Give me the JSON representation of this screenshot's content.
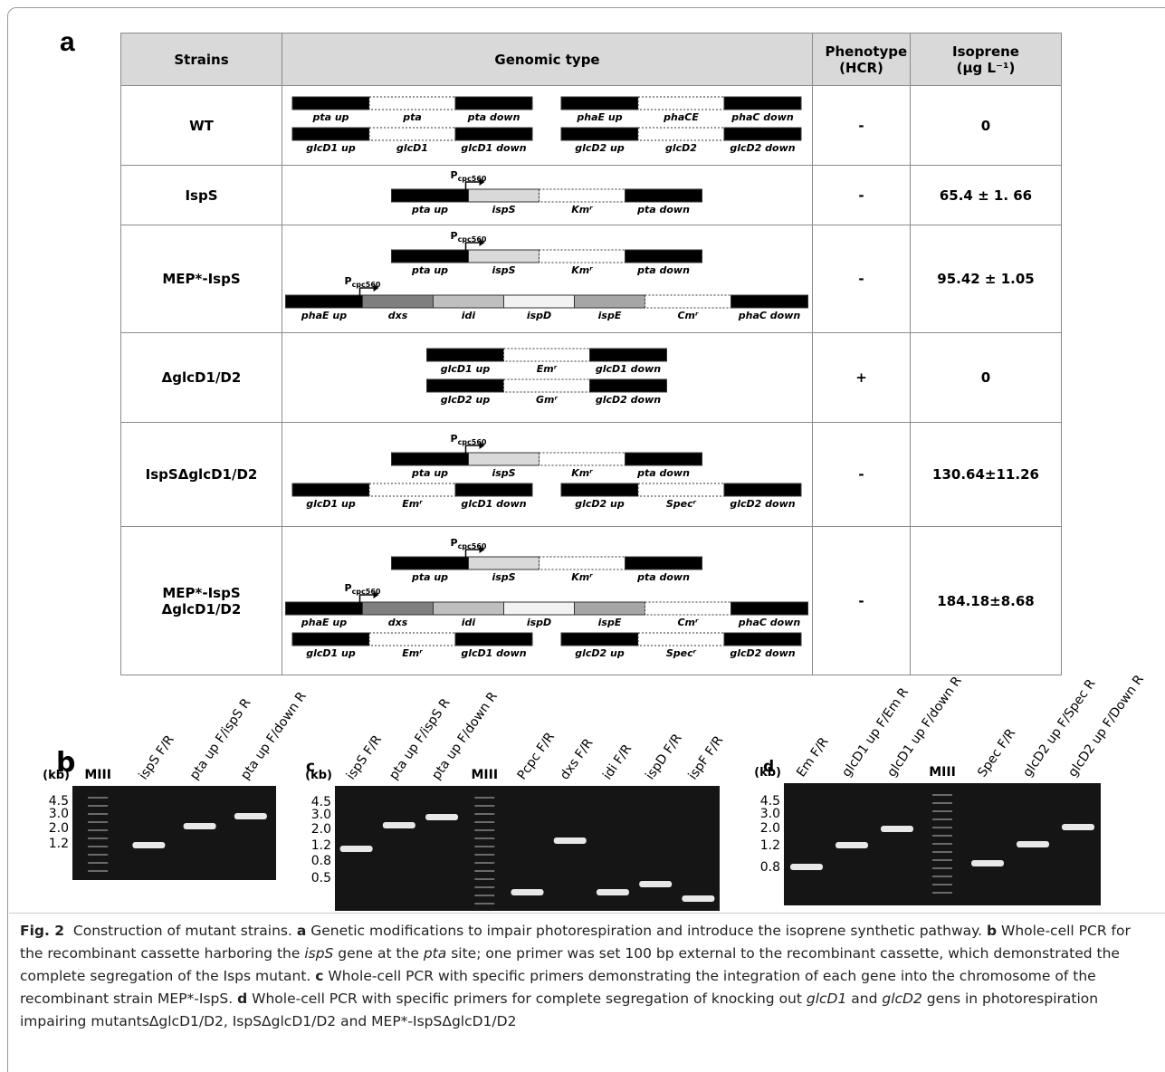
{
  "panel_a": {
    "label": "a",
    "headers": [
      "Strains",
      "Genomic type",
      "Phenotype (HCR)",
      "Isoprene (μg L⁻¹)"
    ],
    "rows": [
      {
        "strain": "WT",
        "lines": [
          [
            {
              "segments": [
                {
                  "label": "pta up",
                  "fill": "#000000"
                },
                {
                  "label": "pta",
                  "fill": "#ffffff",
                  "dashed": true
                },
                {
                  "label": "pta down",
                  "fill": "#000000"
                }
              ]
            },
            {
              "segments": [
                {
                  "label": "phaE up",
                  "fill": "#000000"
                },
                {
                  "label": "phaCE",
                  "fill": "#ffffff",
                  "dashed": true
                },
                {
                  "label": "phaC down",
                  "fill": "#000000"
                }
              ]
            }
          ],
          [
            {
              "segments": [
                {
                  "label": "glcD1 up",
                  "fill": "#000000"
                },
                {
                  "label": "glcD1",
                  "fill": "#ffffff",
                  "dashed": true
                },
                {
                  "label": "glcD1 down",
                  "fill": "#000000"
                }
              ]
            },
            {
              "segments": [
                {
                  "label": "glcD2 up",
                  "fill": "#000000"
                },
                {
                  "label": "glcD2",
                  "fill": "#ffffff",
                  "dashed": true
                },
                {
                  "label": "glcD2 down",
                  "fill": "#000000"
                }
              ]
            }
          ]
        ],
        "phenotype": "-",
        "isoprene": "0"
      },
      {
        "strain": "IspS",
        "lines": [
          [
            {
              "segments": [
                {
                  "label": "pta up",
                  "fill": "#000000"
                },
                {
                  "label": "ispS",
                  "fill": "#d9d9d9",
                  "promoter": {
                    "main": "P",
                    "sub": "cpc560"
                  }
                },
                {
                  "label": "Kmʳ",
                  "fill": "#ffffff",
                  "dashed": true
                },
                {
                  "label": "pta down",
                  "fill": "#000000"
                }
              ]
            }
          ]
        ],
        "phenotype": "-",
        "isoprene": "65.4 ± 1. 66"
      },
      {
        "strain": "MEP*-IspS",
        "lines": [
          [
            {
              "segments": [
                {
                  "label": "pta up",
                  "fill": "#000000"
                },
                {
                  "label": "ispS",
                  "fill": "#d9d9d9",
                  "promoter": {
                    "main": "P",
                    "sub": "cpc560"
                  }
                },
                {
                  "label": "Kmʳ",
                  "fill": "#ffffff",
                  "dashed": true
                },
                {
                  "label": "pta down",
                  "fill": "#000000"
                }
              ]
            }
          ],
          [
            {
              "segments": [
                {
                  "label": "phaE up",
                  "fill": "#000000"
                },
                {
                  "label": "dxs",
                  "fill": "#7f7f7f",
                  "promoter": {
                    "main": "P",
                    "sub": "cpc560"
                  }
                },
                {
                  "label": "idi",
                  "fill": "#bfbfbf"
                },
                {
                  "label": "ispD",
                  "fill": "#f2f2f2"
                },
                {
                  "label": "ispE",
                  "fill": "#a6a6a6"
                },
                {
                  "label": "Cmʳ",
                  "fill": "#ffffff",
                  "dashed": true
                },
                {
                  "label": "phaC down",
                  "fill": "#000000"
                }
              ]
            }
          ]
        ],
        "phenotype": "-",
        "isoprene": "95.42 ± 1.05"
      },
      {
        "strain": "ΔglcD1/D2",
        "lines": [
          [
            {
              "segments": [
                {
                  "label": "glcD1 up",
                  "fill": "#000000"
                },
                {
                  "label": "Emʳ",
                  "fill": "#ffffff",
                  "dashed": true
                },
                {
                  "label": "glcD1 down",
                  "fill": "#000000"
                }
              ]
            }
          ],
          [
            {
              "segments": [
                {
                  "label": "glcD2 up",
                  "fill": "#000000"
                },
                {
                  "label": "Gmʳ",
                  "fill": "#ffffff",
                  "dashed": true
                },
                {
                  "label": "glcD2 down",
                  "fill": "#000000"
                }
              ]
            }
          ]
        ],
        "phenotype": "+",
        "isoprene": "0"
      },
      {
        "strain": "IspSΔglcD1/D2",
        "lines": [
          [
            {
              "segments": [
                {
                  "label": "pta up",
                  "fill": "#000000"
                },
                {
                  "label": "ispS",
                  "fill": "#d9d9d9",
                  "promoter": {
                    "main": "P",
                    "sub": "cpc560"
                  }
                },
                {
                  "label": "Kmʳ",
                  "fill": "#ffffff",
                  "dashed": true
                },
                {
                  "label": "pta down",
                  "fill": "#000000"
                }
              ]
            }
          ],
          [
            {
              "segments": [
                {
                  "label": "glcD1 up",
                  "fill": "#000000"
                },
                {
                  "label": "Emʳ",
                  "fill": "#ffffff",
                  "dashed": true
                },
                {
                  "label": "glcD1 down",
                  "fill": "#000000"
                }
              ]
            },
            {
              "segments": [
                {
                  "label": "glcD2 up",
                  "fill": "#000000"
                },
                {
                  "label": "Specʳ",
                  "fill": "#ffffff",
                  "dashed": true
                },
                {
                  "label": "glcD2 down",
                  "fill": "#000000"
                }
              ]
            }
          ]
        ],
        "phenotype": "-",
        "isoprene": "130.64±11.26"
      },
      {
        "strain": "MEP*-IspS ΔglcD1/D2",
        "lines": [
          [
            {
              "segments": [
                {
                  "label": "pta up",
                  "fill": "#000000"
                },
                {
                  "label": "ispS",
                  "fill": "#d9d9d9",
                  "promoter": {
                    "main": "P",
                    "sub": "cpc560"
                  }
                },
                {
                  "label": "Kmʳ",
                  "fill": "#ffffff",
                  "dashed": true
                },
                {
                  "label": "pta down",
                  "fill": "#000000"
                }
              ]
            }
          ],
          [
            {
              "segments": [
                {
                  "label": "phaE up",
                  "fill": "#000000"
                },
                {
                  "label": "dxs",
                  "fill": "#7f7f7f",
                  "promoter": {
                    "main": "P",
                    "sub": "cpc560"
                  }
                },
                {
                  "label": "idi",
                  "fill": "#bfbfbf"
                },
                {
                  "label": "ispD",
                  "fill": "#f2f2f2"
                },
                {
                  "label": "ispE",
                  "fill": "#a6a6a6"
                },
                {
                  "label": "Cmʳ",
                  "fill": "#ffffff",
                  "dashed": true
                },
                {
                  "label": "phaC down",
                  "fill": "#000000"
                }
              ]
            }
          ],
          [
            {
              "segments": [
                {
                  "label": "glcD1 up",
                  "fill": "#000000"
                },
                {
                  "label": "Emʳ",
                  "fill": "#ffffff",
                  "dashed": true
                },
                {
                  "label": "glcD1 down",
                  "fill": "#000000"
                }
              ]
            },
            {
              "segments": [
                {
                  "label": "glcD2 up",
                  "fill": "#000000"
                },
                {
                  "label": "Specʳ",
                  "fill": "#ffffff",
                  "dashed": true
                },
                {
                  "label": "glcD2 down",
                  "fill": "#000000"
                }
              ]
            }
          ]
        ],
        "phenotype": "-",
        "isoprene": "184.18±8.68"
      }
    ]
  },
  "gels": [
    {
      "label": "b",
      "unit": "(kb)",
      "markers": [
        "4.5",
        "3.0",
        "2.0",
        "1.2"
      ],
      "lanes": [
        {
          "label": "MIII",
          "marker": true
        },
        {
          "label": "ispS F/R"
        },
        {
          "label": "pta up F/ispS R"
        },
        {
          "label": "pta up F/down R"
        }
      ]
    },
    {
      "label": "c",
      "unit": "(kb)",
      "markers": [
        "4.5",
        "3.0",
        "2.0",
        "1.2",
        "0.8",
        "0.5"
      ],
      "lanes": [
        {
          "label": "ispS F/R"
        },
        {
          "label": "pta up F/ispS R"
        },
        {
          "label": "pta up F/down R"
        },
        {
          "label": "MIII",
          "marker": true
        },
        {
          "label": "Pcpc F/R"
        },
        {
          "label": "dxs F/R"
        },
        {
          "label": "idi F/R"
        },
        {
          "label": "ispD F/R"
        },
        {
          "label": "ispF F/R"
        }
      ]
    },
    {
      "label": "d",
      "unit": "(kb)",
      "markers": [
        "4.5",
        "3.0",
        "2.0",
        "1.2",
        "0.8"
      ],
      "lanes": [
        {
          "label": "Em F/R"
        },
        {
          "label": "glcD1 up F/Em R"
        },
        {
          "label": "glcD1 up F/down R"
        },
        {
          "label": "MIII",
          "marker": true
        },
        {
          "label": "Spec F/R"
        },
        {
          "label": "glcD2 up F/Spec R"
        },
        {
          "label": "glcD2 up F/Down R"
        }
      ]
    }
  ],
  "caption": {
    "runs": [
      {
        "text": "Fig. 2",
        "bold": true
      },
      {
        "text": "  Construction of mutant strains. "
      },
      {
        "text": "a",
        "bold": true
      },
      {
        "text": " Genetic modifications to impair photorespiration and introduce the isoprene synthetic pathway. "
      },
      {
        "text": "b",
        "bold": true
      },
      {
        "text": " Whole-cell PCR for the recombinant cassette harboring the "
      },
      {
        "text": "ispS",
        "italic": true
      },
      {
        "text": " gene at the "
      },
      {
        "text": "pta",
        "italic": true
      },
      {
        "text": " site; one primer was set 100 bp external to the recombinant cassette, which demonstrated the complete segregation of the Isps mutant. "
      },
      {
        "text": "c",
        "bold": true
      },
      {
        "text": " Whole-cell PCR with specific primers demonstrating the integration of each gene into the chromosome of the recombinant strain MEP*-IspS. "
      },
      {
        "text": "d",
        "bold": true
      },
      {
        "text": " Whole-cell PCR with specific primers for complete segregation of knocking out "
      },
      {
        "text": "glcD1",
        "italic": true
      },
      {
        "text": " and "
      },
      {
        "text": "glcD2",
        "italic": true
      },
      {
        "text": " gens in photorespiration impairing mutantsΔglcD1/D2, IspSΔglcD1/D2 and MEP*-IspSΔglcD1/D2"
      }
    ]
  }
}
